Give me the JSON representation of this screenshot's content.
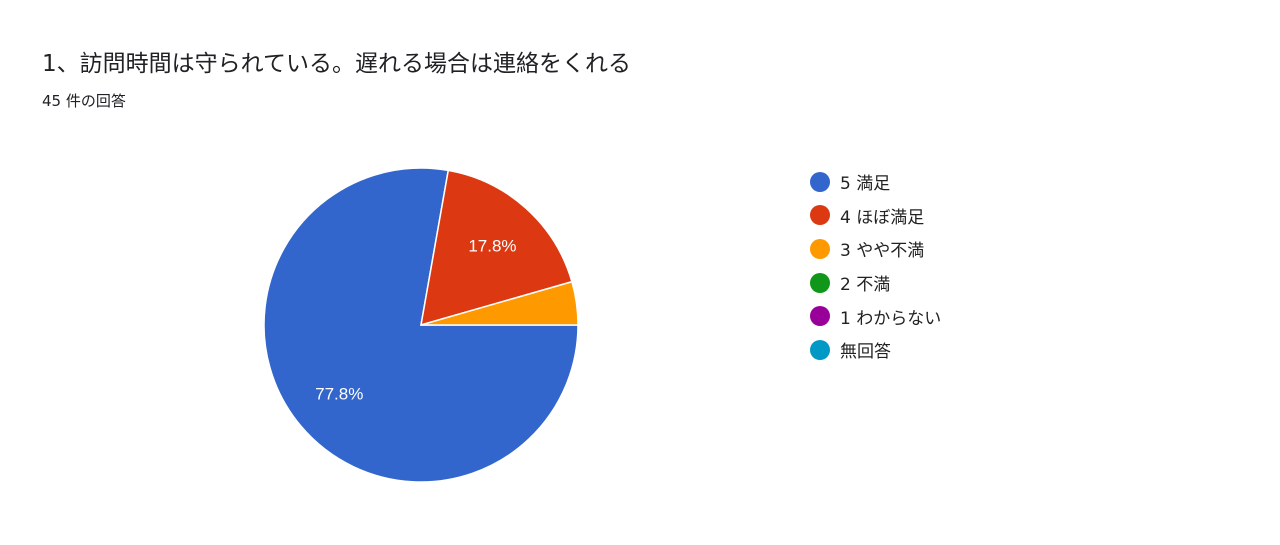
{
  "title": "1、訪問時間は守られている。遅れる場合は連絡をくれる",
  "subtitle": "45 件の回答",
  "chart_data": {
    "type": "pie",
    "title": "1、訪問時間は守られている。遅れる場合は連絡をくれる",
    "total_responses": 45,
    "start_angle": "3 o'clock, clockwise",
    "legend_position": "right",
    "slices": [
      {
        "name": "5 満足",
        "value": 35,
        "percent": 77.8,
        "label": "77.8%",
        "color": "#3366cc"
      },
      {
        "name": "4 ほぼ満足",
        "value": 8,
        "percent": 17.8,
        "label": "17.8%",
        "color": "#dc3912"
      },
      {
        "name": "3 やや不満",
        "value": 2,
        "percent": 4.4,
        "label": "",
        "color": "#ff9900"
      },
      {
        "name": "2 不満",
        "value": 0,
        "percent": 0,
        "label": "",
        "color": "#109618"
      },
      {
        "name": "1 わからない",
        "value": 0,
        "percent": 0,
        "label": "",
        "color": "#990099"
      },
      {
        "name": "無回答",
        "value": 0,
        "percent": 0,
        "label": "",
        "color": "#0099c6"
      }
    ]
  }
}
